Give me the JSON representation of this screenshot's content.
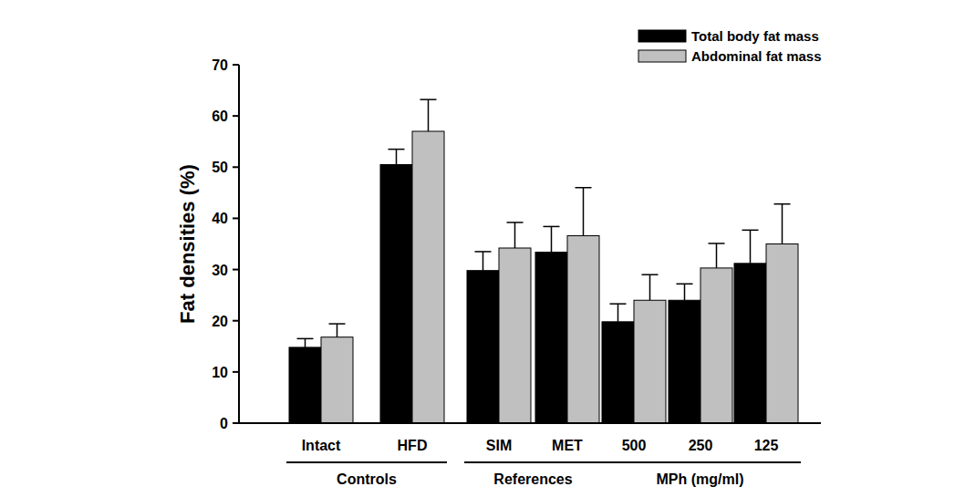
{
  "chart_data": {
    "type": "bar",
    "y_label": "Fat densities (%)",
    "categories": [
      "Intact",
      "HFD",
      "SIM",
      "MET",
      "500",
      "250",
      "125"
    ],
    "series": [
      {
        "name": "Total body fat mass",
        "color": "#000000",
        "values": [
          14.8,
          50.5,
          29.8,
          33.4,
          19.8,
          24.0,
          31.2
        ],
        "errors": [
          1.7,
          3.0,
          3.7,
          5.0,
          3.5,
          3.2,
          6.5
        ]
      },
      {
        "name": "Abdominal fat mass",
        "color": "#c0c0c0",
        "values": [
          16.8,
          57.0,
          34.2,
          36.6,
          24.0,
          30.3,
          35.0
        ],
        "errors": [
          2.6,
          6.2,
          5.0,
          9.4,
          5.0,
          4.8,
          7.8
        ]
      }
    ],
    "groups": [
      {
        "label": "Controls",
        "categories": [
          "Intact",
          "HFD"
        ]
      },
      {
        "label": "References",
        "categories": [
          "SIM",
          "MET"
        ]
      },
      {
        "label": "MPh (mg/ml)",
        "categories": [
          "500",
          "250",
          "125"
        ]
      }
    ],
    "ylim": [
      0,
      70
    ],
    "yticks": [
      0,
      10,
      20,
      30,
      40,
      50,
      60,
      70
    ],
    "legend": "top-right",
    "grid": false
  }
}
